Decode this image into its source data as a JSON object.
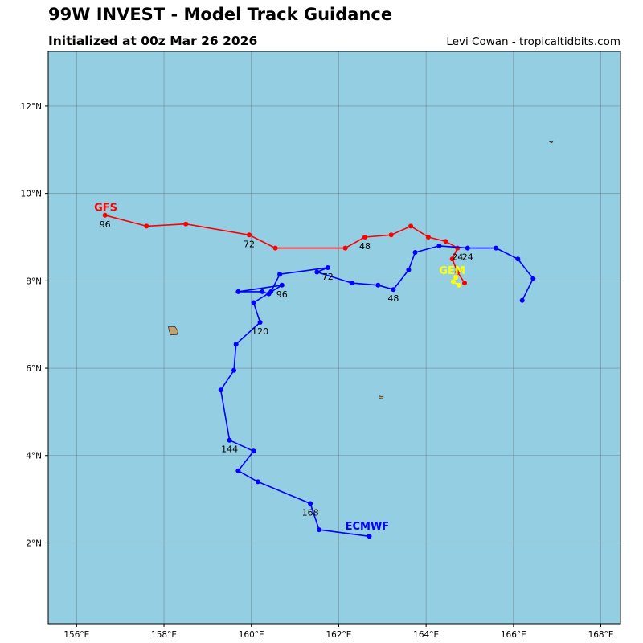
{
  "header": {
    "title": "99W INVEST - Model Track Guidance",
    "subtitle": "Initialized at 00z Mar 26 2026",
    "credit": "Levi Cowan - tropicaltidbits.com"
  },
  "chart_data": {
    "type": "scatter",
    "map": {
      "lon_range": [
        155.35,
        168.45
      ],
      "lat_range": [
        0.15,
        13.25
      ],
      "ocean_color": "#94cee2",
      "land_color": "#c3a270",
      "grid": true,
      "x_ticks": [
        156,
        158,
        160,
        162,
        164,
        166,
        168
      ],
      "x_tick_labels": [
        "156°E",
        "158°E",
        "160°E",
        "162°E",
        "164°E",
        "166°E",
        "168°E"
      ],
      "y_ticks": [
        2,
        4,
        6,
        8,
        10,
        12
      ],
      "y_tick_labels": [
        "2°N",
        "4°N",
        "6°N",
        "8°N",
        "10°N",
        "12°N"
      ]
    },
    "series": [
      {
        "name": "GFS",
        "color": "#ff0000",
        "points": [
          [
            164.88,
            7.95
          ],
          [
            164.72,
            8.2
          ],
          [
            164.6,
            8.5
          ],
          [
            164.72,
            8.75
          ],
          [
            164.45,
            8.9
          ],
          [
            164.05,
            9.0
          ],
          [
            163.65,
            9.25
          ],
          [
            163.2,
            9.05
          ],
          [
            162.6,
            9.0
          ],
          [
            162.15,
            8.75
          ],
          [
            160.55,
            8.75
          ],
          [
            159.95,
            9.05
          ],
          [
            158.5,
            9.3
          ],
          [
            157.6,
            9.25
          ],
          [
            156.65,
            9.5
          ]
        ],
        "hour_labels": [
          {
            "text": "24",
            "lon": 164.72,
            "lat": 8.75
          },
          {
            "text": "48",
            "lon": 162.6,
            "lat": 9.0
          },
          {
            "text": "72",
            "lon": 159.95,
            "lat": 9.05
          },
          {
            "text": "96",
            "lon": 156.65,
            "lat": 9.5
          }
        ],
        "label_anchor": {
          "lon": 156.4,
          "lat": 9.6
        }
      },
      {
        "name": "GEM",
        "color": "#ffff00",
        "points": [
          [
            164.75,
            7.9
          ],
          [
            164.62,
            7.98
          ],
          [
            164.68,
            8.08
          ]
        ],
        "hour_labels": [],
        "label_anchor": {
          "lon": 164.3,
          "lat": 8.15
        }
      },
      {
        "name": "ECMWF",
        "color": "#0000ff",
        "points": [
          [
            166.2,
            7.55
          ],
          [
            166.45,
            8.05
          ],
          [
            166.1,
            8.5
          ],
          [
            165.6,
            8.75
          ],
          [
            164.95,
            8.75
          ],
          [
            164.3,
            8.8
          ],
          [
            163.75,
            8.65
          ],
          [
            163.6,
            8.25
          ],
          [
            163.25,
            7.8
          ],
          [
            162.9,
            7.9
          ],
          [
            162.3,
            7.95
          ],
          [
            161.5,
            8.2
          ],
          [
            161.75,
            8.3
          ],
          [
            160.65,
            8.15
          ],
          [
            160.45,
            7.75
          ],
          [
            160.4,
            7.7
          ],
          [
            160.25,
            7.75
          ],
          [
            159.7,
            7.75
          ],
          [
            160.7,
            7.9
          ],
          [
            160.05,
            7.5
          ],
          [
            160.2,
            7.05
          ],
          [
            159.65,
            6.55
          ],
          [
            159.6,
            5.95
          ],
          [
            159.3,
            5.5
          ],
          [
            159.5,
            4.35
          ],
          [
            160.05,
            4.1
          ],
          [
            159.7,
            3.65
          ],
          [
            160.15,
            3.4
          ],
          [
            161.35,
            2.9
          ],
          [
            161.55,
            2.3
          ],
          [
            162.7,
            2.15
          ]
        ],
        "hour_labels": [
          {
            "text": "24",
            "lon": 164.95,
            "lat": 8.75
          },
          {
            "text": "48",
            "lon": 163.25,
            "lat": 7.8
          },
          {
            "text": "72",
            "lon": 161.75,
            "lat": 8.3
          },
          {
            "text": "96",
            "lon": 160.7,
            "lat": 7.9
          },
          {
            "text": "120",
            "lon": 160.2,
            "lat": 7.05
          },
          {
            "text": "144",
            "lon": 159.5,
            "lat": 4.35
          },
          {
            "text": "168",
            "lon": 161.35,
            "lat": 2.9
          }
        ],
        "label_anchor": {
          "lon": 162.15,
          "lat": 2.3
        }
      }
    ],
    "islands": [
      {
        "name": "Pohnpei",
        "outline": [
          [
            158.1,
            6.95
          ],
          [
            158.25,
            6.95
          ],
          [
            158.32,
            6.85
          ],
          [
            158.3,
            6.77
          ],
          [
            158.15,
            6.76
          ],
          [
            158.12,
            6.85
          ]
        ]
      },
      {
        "name": "Kosrae",
        "outline": [
          [
            162.93,
            5.36
          ],
          [
            163.02,
            5.34
          ],
          [
            163.0,
            5.3
          ],
          [
            162.92,
            5.31
          ]
        ]
      },
      {
        "name": "Atoll",
        "outline": [
          [
            166.82,
            11.18
          ],
          [
            166.9,
            11.19
          ],
          [
            166.88,
            11.16
          ]
        ]
      }
    ]
  }
}
